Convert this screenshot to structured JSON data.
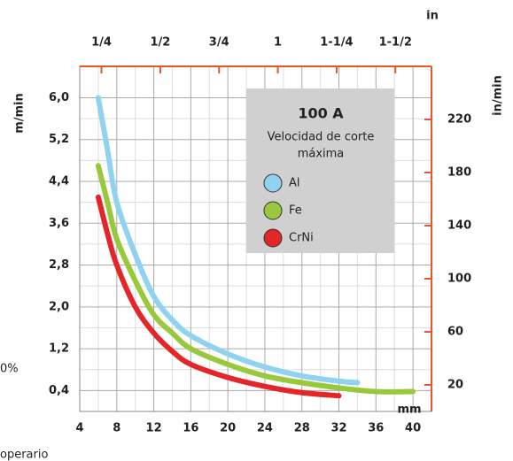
{
  "chart_data": {
    "type": "line",
    "title": "100 A",
    "subtitle": [
      "Velocidad de corte",
      "máxima"
    ],
    "x_label": "mm",
    "x2_label": "in",
    "y_label": "m/min",
    "y2_label": "in/min",
    "annotations": [
      "0%",
      "operario"
    ],
    "xlim": [
      4,
      42
    ],
    "xticks": [
      4,
      8,
      12,
      16,
      20,
      24,
      28,
      32,
      36,
      40
    ],
    "x2lim": [
      0.1575,
      1.6535
    ],
    "x2ticks": [
      {
        "value": 0.25,
        "label": "1/4"
      },
      {
        "value": 0.5,
        "label": "1/2"
      },
      {
        "value": 0.75,
        "label": "3/4"
      },
      1,
      {
        "value": 1.25,
        "label": "1-1/4"
      },
      {
        "value": 1.5,
        "label": "1-1/2"
      }
    ],
    "ylim": [
      0,
      6.6
    ],
    "yticks": [
      {
        "value": 0.4,
        "label": "0,4"
      },
      {
        "value": 1.2,
        "label": "1,2"
      },
      {
        "value": 2.0,
        "label": "2,0"
      },
      {
        "value": 2.8,
        "label": "2,8"
      },
      {
        "value": 3.6,
        "label": "3,6"
      },
      {
        "value": 4.4,
        "label": "4,4"
      },
      {
        "value": 5.2,
        "label": "5,2"
      },
      {
        "value": 6.0,
        "label": "6,0"
      }
    ],
    "y2lim": [
      0,
      260
    ],
    "y2ticks": [
      20,
      60,
      100,
      140,
      180,
      220
    ],
    "grid": true,
    "axis_color": "#e8552a",
    "series": [
      {
        "name": "Al",
        "color": "#8fd3f0",
        "x": [
          6,
          7,
          8,
          10,
          12,
          14,
          16,
          20,
          24,
          28,
          32,
          34
        ],
        "values": [
          6.0,
          5.0,
          4.0,
          3.0,
          2.2,
          1.75,
          1.45,
          1.1,
          0.85,
          0.68,
          0.58,
          0.55
        ]
      },
      {
        "name": "Fe",
        "color": "#9ac83c",
        "x": [
          6,
          7,
          8,
          10,
          12,
          14,
          16,
          20,
          24,
          28,
          32,
          36,
          40
        ],
        "values": [
          4.7,
          4.0,
          3.3,
          2.5,
          1.85,
          1.5,
          1.2,
          0.9,
          0.68,
          0.55,
          0.45,
          0.38,
          0.38
        ]
      },
      {
        "name": "CrNi",
        "color": "#e3262a",
        "x": [
          6,
          7,
          8,
          10,
          12,
          14,
          16,
          20,
          24,
          28,
          32
        ],
        "values": [
          4.1,
          3.4,
          2.8,
          2.0,
          1.5,
          1.15,
          0.9,
          0.65,
          0.48,
          0.36,
          0.3
        ]
      }
    ]
  }
}
